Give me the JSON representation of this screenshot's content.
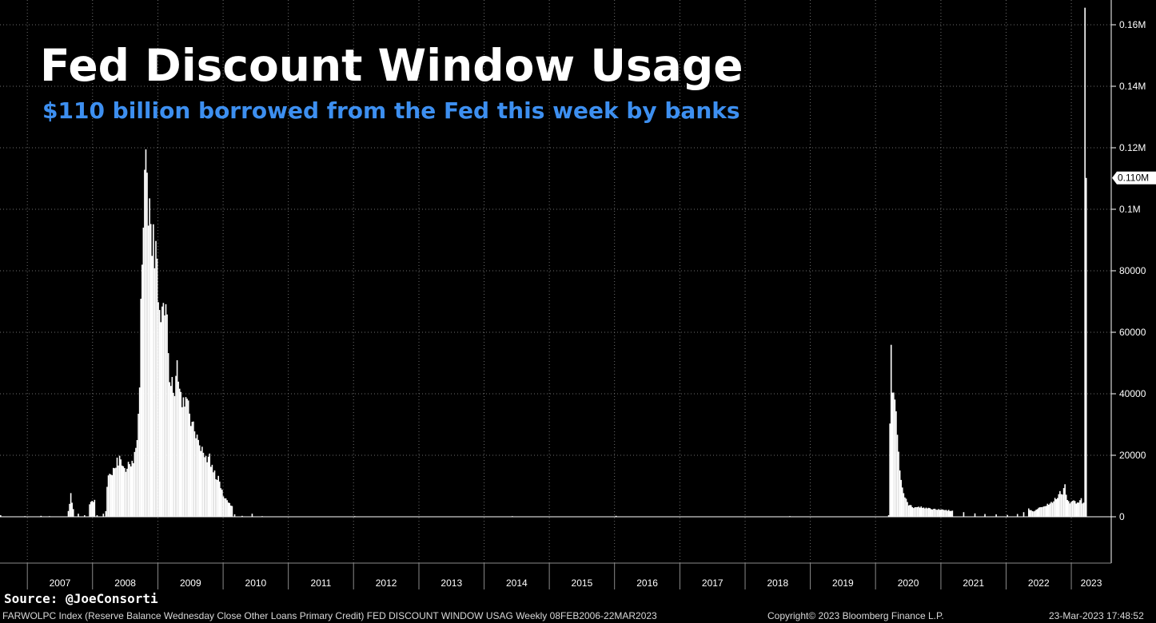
{
  "header": {
    "title": "Fed Discount Window Usage",
    "subtitle": "$110 billion borrowed from the Fed this week by banks"
  },
  "source": "Source: @JoeConsorti",
  "footer": {
    "description": "FARWOLPC Index (Reserve Balance Wednesday Close Other Loans Primary Credit) FED DISCOUNT WINDOW USAG  Weekly 08FEB2006-22MAR2023",
    "copyright": "Copyright© 2023 Bloomberg Finance L.P.",
    "timestamp": "23-Mar-2023 17:48:52"
  },
  "colors": {
    "background": "#000000",
    "bars": "#ffffff",
    "grid": "#6e6e6e",
    "subtitle": "#3d8ff0"
  },
  "chart_data": {
    "type": "bar",
    "title": "Fed Discount Window Usage",
    "subtitle": "$110 billion borrowed from the Fed this week by banks",
    "frequency": "Weekly",
    "x_axis": {
      "tick_labels": [
        "2007",
        "2008",
        "2009",
        "2010",
        "2011",
        "2012",
        "2013",
        "2014",
        "2015",
        "2016",
        "2017",
        "2018",
        "2019",
        "2020",
        "2021",
        "2022",
        "2023"
      ]
    },
    "y_axis": {
      "side": "right",
      "ylim": [
        -15000,
        165000
      ],
      "ticks": [
        0,
        20000,
        40000,
        60000,
        80000,
        100000,
        120000,
        140000,
        160000
      ],
      "tick_labels": [
        "0",
        "20000",
        "40000",
        "60000",
        "80000",
        "0.1M",
        "0.12M",
        "0.14M",
        "0.16M"
      ]
    },
    "last_value_label": "0.110M",
    "grid": true,
    "series": [
      {
        "points": [
          [
            "2006-02-08",
            500
          ],
          [
            "2006-03-15",
            1000
          ],
          [
            "2006-06-01",
            1500
          ],
          [
            "2006-08-01",
            500
          ],
          [
            "2006-12-15",
            200
          ],
          [
            "2007-03-15",
            300
          ],
          [
            "2007-05-01",
            200
          ],
          [
            "2007-08-15",
            2000
          ],
          [
            "2007-08-29",
            7000
          ],
          [
            "2007-09-12",
            2500
          ],
          [
            "2007-10-10",
            1000
          ],
          [
            "2007-11-14",
            500
          ],
          [
            "2007-12-12",
            4000
          ],
          [
            "2007-12-26",
            5000
          ],
          [
            "2008-01-09",
            5500
          ],
          [
            "2008-01-23",
            500
          ],
          [
            "2008-02-27",
            1000
          ],
          [
            "2008-03-12",
            2000
          ],
          [
            "2008-03-19",
            10000
          ],
          [
            "2008-03-26",
            13000
          ],
          [
            "2008-04-09",
            14000
          ],
          [
            "2008-05-07",
            17000
          ],
          [
            "2008-06-04",
            19000
          ],
          [
            "2008-07-02",
            16000
          ],
          [
            "2008-08-06",
            18000
          ],
          [
            "2008-09-03",
            23000
          ],
          [
            "2008-09-17",
            40000
          ],
          [
            "2008-09-24",
            70000
          ],
          [
            "2008-10-08",
            100000
          ],
          [
            "2008-10-22",
            111000
          ],
          [
            "2008-10-29",
            107000
          ],
          [
            "2008-11-12",
            95000
          ],
          [
            "2008-11-26",
            92000
          ],
          [
            "2008-12-10",
            88000
          ],
          [
            "2008-12-24",
            85000
          ],
          [
            "2009-01-07",
            70000
          ],
          [
            "2009-01-21",
            66000
          ],
          [
            "2009-02-04",
            64000
          ],
          [
            "2009-02-18",
            62000
          ],
          [
            "2009-03-04",
            48000
          ],
          [
            "2009-03-18",
            43000
          ],
          [
            "2009-04-01",
            38000
          ],
          [
            "2009-04-15",
            50000
          ],
          [
            "2009-04-29",
            42000
          ],
          [
            "2009-05-13",
            38000
          ],
          [
            "2009-05-27",
            36000
          ],
          [
            "2009-06-10",
            38000
          ],
          [
            "2009-06-24",
            32000
          ],
          [
            "2009-07-08",
            30000
          ],
          [
            "2009-07-22",
            29000
          ],
          [
            "2009-08-05",
            27000
          ],
          [
            "2009-08-19",
            25000
          ],
          [
            "2009-09-02",
            21000
          ],
          [
            "2009-09-16",
            20000
          ],
          [
            "2009-09-30",
            19500
          ],
          [
            "2009-10-14",
            19000
          ],
          [
            "2009-10-28",
            16000
          ],
          [
            "2009-11-11",
            14000
          ],
          [
            "2009-11-25",
            13000
          ],
          [
            "2009-12-09",
            12000
          ],
          [
            "2009-12-23",
            8000
          ],
          [
            "2010-01-06",
            6500
          ],
          [
            "2010-01-20",
            5500
          ],
          [
            "2010-02-03",
            4500
          ],
          [
            "2010-02-17",
            3500
          ],
          [
            "2010-03-03",
            800
          ],
          [
            "2010-04-14",
            300
          ],
          [
            "2010-06-09",
            1000
          ],
          [
            "2010-08-04",
            200
          ],
          [
            "2011-03-09",
            100
          ],
          [
            "2012-01-04",
            200
          ],
          [
            "2013-01-09",
            100
          ],
          [
            "2014-06-04",
            200
          ],
          [
            "2016-01-06",
            300
          ],
          [
            "2017-03-08",
            100
          ],
          [
            "2018-05-09",
            100
          ],
          [
            "2018-09-05",
            200
          ],
          [
            "2019-04-03",
            100
          ],
          [
            "2020-03-11",
            500
          ],
          [
            "2020-03-18",
            28000
          ],
          [
            "2020-03-25",
            51000
          ],
          [
            "2020-04-01",
            44000
          ],
          [
            "2020-04-08",
            40000
          ],
          [
            "2020-04-15",
            36000
          ],
          [
            "2020-04-22",
            32000
          ],
          [
            "2020-04-29",
            27000
          ],
          [
            "2020-05-06",
            20000
          ],
          [
            "2020-05-20",
            12000
          ],
          [
            "2020-06-03",
            8000
          ],
          [
            "2020-06-17",
            5500
          ],
          [
            "2020-07-01",
            4000
          ],
          [
            "2020-07-29",
            3000
          ],
          [
            "2020-09-02",
            3200
          ],
          [
            "2020-10-07",
            2800
          ],
          [
            "2020-11-04",
            2600
          ],
          [
            "2020-12-02",
            2400
          ],
          [
            "2021-01-06",
            2200
          ],
          [
            "2021-03-03",
            2000
          ],
          [
            "2021-05-05",
            1500
          ],
          [
            "2021-07-07",
            1100
          ],
          [
            "2021-09-01",
            900
          ],
          [
            "2021-11-03",
            800
          ],
          [
            "2022-01-05",
            600
          ],
          [
            "2022-03-02",
            900
          ],
          [
            "2022-04-06",
            1500
          ],
          [
            "2022-05-04",
            2500
          ],
          [
            "2022-06-01",
            1800
          ],
          [
            "2022-07-06",
            3000
          ],
          [
            "2022-08-03",
            3500
          ],
          [
            "2022-09-07",
            4500
          ],
          [
            "2022-10-05",
            6000
          ],
          [
            "2022-10-26",
            8000
          ],
          [
            "2022-11-09",
            7000
          ],
          [
            "2022-11-23",
            10000
          ],
          [
            "2022-12-07",
            5000
          ],
          [
            "2022-12-28",
            4500
          ],
          [
            "2023-01-11",
            5000
          ],
          [
            "2023-02-01",
            4500
          ],
          [
            "2023-02-22",
            5500
          ],
          [
            "2023-03-01",
            4700
          ],
          [
            "2023-03-08",
            4600
          ],
          [
            "2023-03-15",
            153000
          ],
          [
            "2023-03-22",
            110200
          ]
        ]
      }
    ]
  }
}
